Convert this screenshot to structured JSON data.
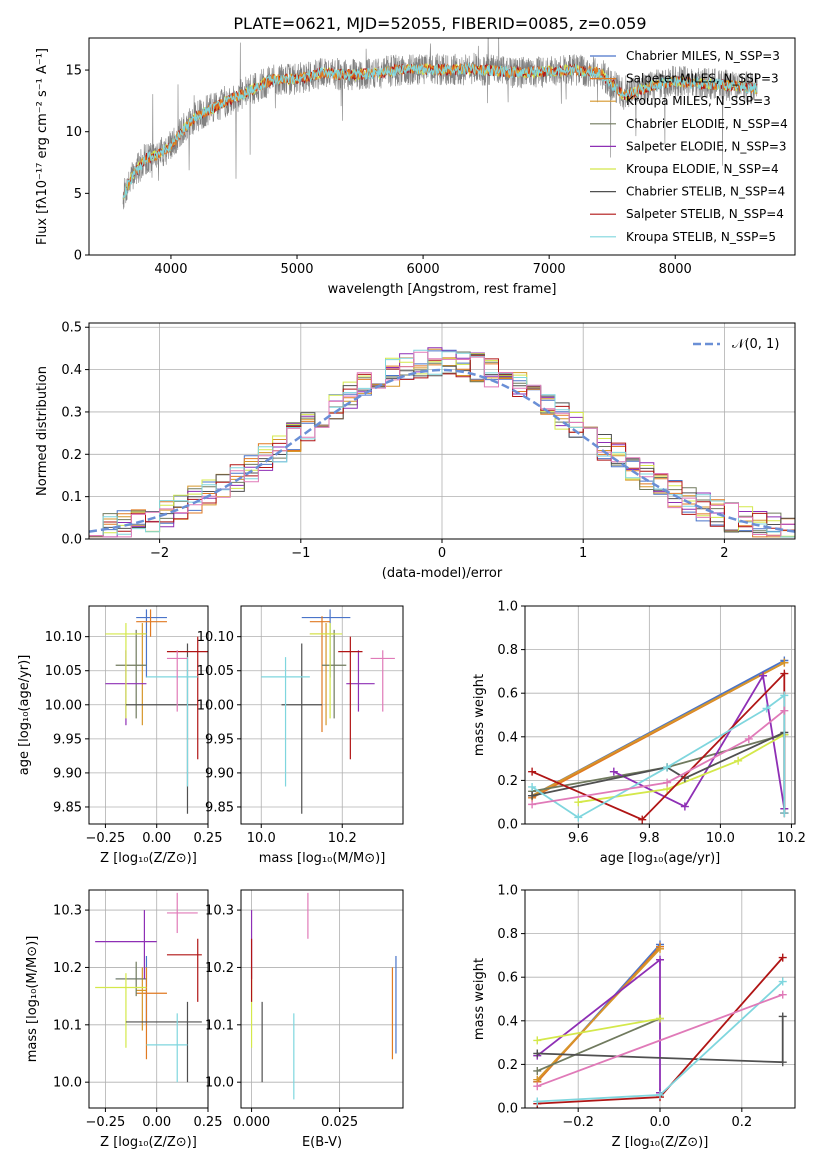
{
  "figure_title": "PLATE=0621, MJD=52055, FIBERID=0085, z=0.059",
  "colors": {
    "chabrier_miles": "#4a74c9",
    "salpeter_miles": "#e07a22",
    "kroupa_miles": "#d6962a",
    "chabrier_elodie": "#707a5e",
    "salpeter_elodie": "#8e2fb5",
    "kroupa_elodie": "#d4e84a",
    "chabrier_stelib": "#505050",
    "salpeter_stelib": "#b01515",
    "kroupa_stelib": "#7fd6de",
    "pink": "#e07ab8",
    "data_grey": "#808080",
    "normal_curve": "#6a8fd6"
  },
  "chart_data": [
    {
      "id": "spectrum",
      "type": "line",
      "title": "PLATE=0621, MJD=52055, FIBERID=0085, z=0.059",
      "xlabel": "wavelength [Angstrom, rest frame]",
      "ylabel": "Flux [fλ10⁻¹⁷ erg cm⁻² s⁻¹ A⁻¹]",
      "xlim": [
        3350,
        8950
      ],
      "ylim": [
        0,
        17.6
      ],
      "xticks": [
        "4000",
        "5000",
        "6000",
        "7000",
        "8000"
      ],
      "xtick_values": [
        4000,
        5000,
        6000,
        7000,
        8000
      ],
      "yticks": [
        "0",
        "5",
        "10",
        "15"
      ],
      "ytick_values": [
        0,
        5,
        10,
        15
      ],
      "legend_position": "top-right",
      "legend": [
        {
          "label": "Chabrier MILES, N_SSP=3",
          "color_key": "chabrier_miles"
        },
        {
          "label": "Salpeter MILES, N_SSP=3",
          "color_key": "salpeter_miles"
        },
        {
          "label": "Kroupa MILES, N_SSP=3",
          "color_key": "kroupa_miles"
        },
        {
          "label": "Chabrier ELODIE, N_SSP=4",
          "color_key": "chabrier_elodie"
        },
        {
          "label": "Salpeter ELODIE, N_SSP=3",
          "color_key": "salpeter_elodie"
        },
        {
          "label": "Kroupa ELODIE, N_SSP=4",
          "color_key": "kroupa_elodie"
        },
        {
          "label": "Chabrier STELIB, N_SSP=4",
          "color_key": "chabrier_stelib"
        },
        {
          "label": "Salpeter STELIB, N_SSP=4",
          "color_key": "salpeter_stelib"
        },
        {
          "label": "Kroupa STELIB, N_SSP=5",
          "color_key": "kroupa_stelib"
        }
      ],
      "continuum_x": [
        3620,
        3700,
        3800,
        3900,
        4000,
        4100,
        4200,
        4400,
        4600,
        4800,
        5000,
        5200,
        5400,
        5600,
        5800,
        6000,
        6200,
        6400,
        6600,
        6800,
        7000,
        7200,
        7400,
        7600,
        7800,
        8000,
        8200,
        8400,
        8650
      ],
      "continuum_y": [
        4.8,
        6.5,
        7.8,
        8.2,
        8.8,
        10.2,
        11.2,
        12.3,
        13.2,
        14.2,
        14.3,
        14.8,
        14.6,
        14.7,
        15.0,
        15.1,
        15.0,
        15.1,
        14.9,
        14.8,
        14.9,
        15.0,
        14.8,
        12.9,
        13.7,
        14.1,
        13.9,
        13.8,
        13.5
      ]
    },
    {
      "id": "residual_histogram",
      "type": "histogram",
      "xlabel": "(data-model)/error",
      "ylabel": "Normed distribution",
      "xlim": [
        -2.5,
        2.5
      ],
      "ylim": [
        0,
        0.51
      ],
      "xticks": [
        "−2",
        "−1",
        "0",
        "1",
        "2"
      ],
      "xtick_values": [
        -2,
        -1,
        0,
        1,
        2
      ],
      "yticks": [
        "0.0",
        "0.1",
        "0.2",
        "0.3",
        "0.4",
        "0.5"
      ],
      "ytick_values": [
        0,
        0.1,
        0.2,
        0.3,
        0.4,
        0.5
      ],
      "bin_width": 0.1,
      "legend_position": "top-right",
      "curve_label": "𝒩(0, 1)",
      "curve": {
        "mean": 0,
        "sigma": 1
      }
    },
    {
      "id": "age_vs_Z",
      "type": "scatter",
      "xlabel": "Z [log₁₀(Z/Z⊙)]",
      "ylabel": "age  [log₁₀(age/yr)]",
      "xlim": [
        -0.33,
        0.25
      ],
      "ylim": [
        9.825,
        10.145
      ],
      "xticks": [
        "−0.25",
        "0.00",
        "0.25"
      ],
      "xtick_values": [
        -0.25,
        0,
        0.25
      ],
      "yticks": [
        "9.85",
        "9.90",
        "9.95",
        "10.00",
        "10.05",
        "10.10"
      ],
      "ytick_values": [
        9.85,
        9.9,
        9.95,
        10.0,
        10.05,
        10.1
      ],
      "points": [
        {
          "x": -0.05,
          "y": 10.128,
          "xlo": -0.1,
          "xhi": 0.05,
          "ylo": 10.04,
          "yhi": 10.14,
          "color_key": "chabrier_miles"
        },
        {
          "x": -0.03,
          "y": 10.122,
          "xlo": -0.1,
          "xhi": 0.05,
          "ylo": 10.1,
          "yhi": 10.14,
          "color_key": "salpeter_miles"
        },
        {
          "x": -0.07,
          "y": 10.104,
          "xlo": -0.1,
          "xhi": -0.05,
          "ylo": 9.97,
          "yhi": 10.12,
          "color_key": "kroupa_miles"
        },
        {
          "x": -0.1,
          "y": 10.058,
          "xlo": -0.2,
          "xhi": -0.05,
          "ylo": 9.98,
          "yhi": 10.11,
          "color_key": "chabrier_elodie"
        },
        {
          "x": -0.15,
          "y": 10.031,
          "xlo": -0.25,
          "xhi": -0.05,
          "ylo": 9.97,
          "yhi": 10.08,
          "color_key": "salpeter_elodie"
        },
        {
          "x": -0.15,
          "y": 10.104,
          "xlo": -0.25,
          "xhi": -0.05,
          "ylo": 9.98,
          "yhi": 10.12,
          "color_key": "kroupa_elodie"
        },
        {
          "x": 0.15,
          "y": 10.0,
          "xlo": -0.15,
          "xhi": 0.2,
          "ylo": 9.84,
          "yhi": 10.09,
          "color_key": "chabrier_stelib"
        },
        {
          "x": 0.2,
          "y": 10.078,
          "xlo": 0.05,
          "xhi": 0.25,
          "ylo": 9.92,
          "yhi": 10.1,
          "color_key": "salpeter_stelib"
        },
        {
          "x": 0.15,
          "y": 10.041,
          "xlo": -0.05,
          "xhi": 0.2,
          "ylo": 9.88,
          "yhi": 10.07,
          "color_key": "kroupa_stelib"
        },
        {
          "x": 0.1,
          "y": 10.068,
          "xlo": 0.05,
          "xhi": 0.15,
          "ylo": 9.99,
          "yhi": 10.08,
          "color_key": "pink"
        }
      ]
    },
    {
      "id": "age_vs_mass",
      "type": "scatter",
      "xlabel": "mass [log₁₀(M/M⊙)]",
      "ylabel": "",
      "xlim": [
        9.95,
        10.35
      ],
      "ylim": [
        9.825,
        10.145
      ],
      "xticks": [
        "10.0",
        "10.2"
      ],
      "xtick_values": [
        10.0,
        10.2
      ],
      "yticks": [
        "9.85",
        "9.90",
        "9.95",
        "10.00",
        "10.05",
        "10.10"
      ],
      "ytick_values": [
        9.85,
        9.9,
        9.95,
        10.0,
        10.05,
        10.1
      ],
      "points": [
        {
          "x": 10.17,
          "y": 10.128,
          "xlo": 10.1,
          "xhi": 10.22,
          "ylo": 10.04,
          "yhi": 10.14,
          "color_key": "chabrier_miles"
        },
        {
          "x": 10.15,
          "y": 10.122,
          "xlo": 10.12,
          "xhi": 10.17,
          "ylo": 9.96,
          "yhi": 10.13,
          "color_key": "salpeter_miles"
        },
        {
          "x": 10.16,
          "y": 10.104,
          "xlo": 10.12,
          "xhi": 10.18,
          "ylo": 9.97,
          "yhi": 10.12,
          "color_key": "kroupa_miles"
        },
        {
          "x": 10.18,
          "y": 10.058,
          "xlo": 10.15,
          "xhi": 10.21,
          "ylo": 9.98,
          "yhi": 10.11,
          "color_key": "chabrier_elodie"
        },
        {
          "x": 10.24,
          "y": 10.031,
          "xlo": 10.21,
          "xhi": 10.28,
          "ylo": 9.99,
          "yhi": 10.08,
          "color_key": "salpeter_elodie"
        },
        {
          "x": 10.17,
          "y": 10.104,
          "xlo": 10.12,
          "xhi": 10.2,
          "ylo": 9.98,
          "yhi": 10.12,
          "color_key": "kroupa_elodie"
        },
        {
          "x": 10.1,
          "y": 10.0,
          "xlo": 10.05,
          "xhi": 10.15,
          "ylo": 9.84,
          "yhi": 10.09,
          "color_key": "chabrier_stelib"
        },
        {
          "x": 10.22,
          "y": 10.078,
          "xlo": 10.19,
          "xhi": 10.25,
          "ylo": 9.92,
          "yhi": 10.1,
          "color_key": "salpeter_stelib"
        },
        {
          "x": 10.06,
          "y": 10.041,
          "xlo": 10.0,
          "xhi": 10.12,
          "ylo": 9.88,
          "yhi": 10.07,
          "color_key": "kroupa_stelib"
        },
        {
          "x": 10.3,
          "y": 10.068,
          "xlo": 10.27,
          "xhi": 10.33,
          "ylo": 9.99,
          "yhi": 10.08,
          "color_key": "pink"
        }
      ]
    },
    {
      "id": "weight_vs_age",
      "type": "line",
      "xlabel": "age  [log₁₀(age/yr)]",
      "ylabel": "mass weight",
      "xlim": [
        9.45,
        10.21
      ],
      "ylim": [
        0,
        1.0
      ],
      "xticks": [
        "9.6",
        "9.8",
        "10.0",
        "10.2"
      ],
      "xtick_values": [
        9.6,
        9.8,
        10.0,
        10.2
      ],
      "yticks": [
        "0.0",
        "0.2",
        "0.4",
        "0.6",
        "0.8",
        "1.0"
      ],
      "ytick_values": [
        0,
        0.2,
        0.4,
        0.6,
        0.8,
        1.0
      ],
      "series": [
        {
          "color_key": "chabrier_miles",
          "x": [
            9.47,
            10.18
          ],
          "y": [
            0.13,
            0.75
          ]
        },
        {
          "color_key": "salpeter_miles",
          "x": [
            9.47,
            10.18
          ],
          "y": [
            0.12,
            0.74
          ]
        },
        {
          "color_key": "kroupa_miles",
          "x": [
            9.47,
            10.18
          ],
          "y": [
            0.13,
            0.74
          ]
        },
        {
          "color_key": "chabrier_elodie",
          "x": [
            9.47,
            9.85,
            10.18
          ],
          "y": [
            0.15,
            0.26,
            0.41
          ]
        },
        {
          "color_key": "salpeter_elodie",
          "x": [
            9.7,
            9.9,
            10.12,
            10.18
          ],
          "y": [
            0.24,
            0.08,
            0.68,
            0.07
          ]
        },
        {
          "color_key": "kroupa_elodie",
          "x": [
            9.6,
            9.85,
            10.05,
            10.18
          ],
          "y": [
            0.1,
            0.16,
            0.29,
            0.41
          ]
        },
        {
          "color_key": "chabrier_stelib",
          "x": [
            9.47,
            9.85,
            9.9,
            10.18,
            10.18
          ],
          "y": [
            0.13,
            0.26,
            0.21,
            0.42,
            0.05
          ]
        },
        {
          "color_key": "salpeter_stelib",
          "x": [
            9.47,
            9.78,
            10.18,
            10.18
          ],
          "y": [
            0.24,
            0.02,
            0.69,
            0.05
          ]
        },
        {
          "color_key": "kroupa_stelib",
          "x": [
            9.47,
            9.6,
            9.85,
            10.13,
            10.18,
            10.18
          ],
          "y": [
            0.17,
            0.03,
            0.26,
            0.53,
            0.59,
            0.05
          ]
        },
        {
          "color_key": "pink",
          "x": [
            9.47,
            9.85,
            10.08,
            10.18
          ],
          "y": [
            0.09,
            0.19,
            0.39,
            0.52
          ]
        }
      ]
    },
    {
      "id": "mass_vs_Z",
      "type": "scatter",
      "xlabel": "Z [log₁₀(Z/Z⊙)]",
      "ylabel": "mass [log₁₀(M/M⊙)]",
      "xlim": [
        -0.33,
        0.25
      ],
      "ylim": [
        9.955,
        10.335
      ],
      "xticks": [
        "−0.25",
        "0.00",
        "0.25"
      ],
      "xtick_values": [
        -0.25,
        0,
        0.25
      ],
      "yticks": [
        "10.0",
        "10.1",
        "10.2",
        "10.3"
      ],
      "ytick_values": [
        10.0,
        10.1,
        10.2,
        10.3
      ],
      "points": [
        {
          "x": -0.05,
          "y": 10.18,
          "xlo": -0.2,
          "xhi": -0.05,
          "ylo": 10.1,
          "yhi": 10.22,
          "color_key": "chabrier_miles"
        },
        {
          "x": -0.05,
          "y": 10.155,
          "xlo": -0.1,
          "xhi": 0.05,
          "ylo": 10.04,
          "yhi": 10.2,
          "color_key": "salpeter_miles"
        },
        {
          "x": -0.07,
          "y": 10.16,
          "xlo": -0.1,
          "xhi": -0.05,
          "ylo": 10.09,
          "yhi": 10.2,
          "color_key": "kroupa_miles"
        },
        {
          "x": -0.1,
          "y": 10.18,
          "xlo": -0.2,
          "xhi": -0.05,
          "ylo": 10.15,
          "yhi": 10.21,
          "color_key": "chabrier_elodie"
        },
        {
          "x": -0.06,
          "y": 10.245,
          "xlo": -0.3,
          "xhi": 0.0,
          "ylo": 10.18,
          "yhi": 10.3,
          "color_key": "salpeter_elodie"
        },
        {
          "x": -0.15,
          "y": 10.165,
          "xlo": -0.3,
          "xhi": -0.05,
          "ylo": 10.06,
          "yhi": 10.19,
          "color_key": "kroupa_elodie"
        },
        {
          "x": 0.15,
          "y": 10.105,
          "xlo": -0.15,
          "xhi": 0.22,
          "ylo": 10.0,
          "yhi": 10.14,
          "color_key": "chabrier_stelib"
        },
        {
          "x": 0.2,
          "y": 10.222,
          "xlo": 0.05,
          "xhi": 0.22,
          "ylo": 10.14,
          "yhi": 10.25,
          "color_key": "salpeter_stelib"
        },
        {
          "x": 0.1,
          "y": 10.065,
          "xlo": -0.05,
          "xhi": 0.15,
          "ylo": 10.0,
          "yhi": 10.12,
          "color_key": "kroupa_stelib"
        },
        {
          "x": 0.1,
          "y": 10.295,
          "xlo": 0.05,
          "xhi": 0.2,
          "ylo": 10.26,
          "yhi": 10.33,
          "color_key": "pink"
        }
      ]
    },
    {
      "id": "mass_vs_EBV",
      "type": "scatter",
      "xlabel": "E(B-V)",
      "ylabel": "",
      "xlim": [
        -0.003,
        0.043
      ],
      "ylim": [
        9.955,
        10.335
      ],
      "xticks": [
        "0.000",
        "0.025"
      ],
      "xtick_values": [
        0,
        0.025
      ],
      "yticks": [
        "10.0",
        "10.1",
        "10.2",
        "10.3"
      ],
      "ytick_values": [
        10.0,
        10.1,
        10.2,
        10.3
      ],
      "points": [
        {
          "x": 0.041,
          "y": 10.18,
          "ylo": 10.05,
          "yhi": 10.22,
          "color_key": "chabrier_miles"
        },
        {
          "x": 0.04,
          "y": 10.155,
          "ylo": 10.04,
          "yhi": 10.2,
          "color_key": "salpeter_miles"
        },
        {
          "x": 0.0,
          "y": 10.14,
          "ylo": 10.06,
          "yhi": 10.2,
          "color_key": "kroupa_elodie"
        },
        {
          "x": 0.0,
          "y": 10.245,
          "ylo": 10.18,
          "yhi": 10.3,
          "color_key": "salpeter_elodie"
        },
        {
          "x": 0.0,
          "y": 10.2,
          "ylo": 10.14,
          "yhi": 10.25,
          "color_key": "salpeter_stelib"
        },
        {
          "x": 0.003,
          "y": 10.1,
          "ylo": 10.0,
          "yhi": 10.14,
          "color_key": "chabrier_stelib"
        },
        {
          "x": 0.012,
          "y": 10.05,
          "ylo": 9.97,
          "yhi": 10.12,
          "color_key": "kroupa_stelib"
        },
        {
          "x": 0.016,
          "y": 10.29,
          "ylo": 10.25,
          "yhi": 10.33,
          "color_key": "pink"
        }
      ]
    },
    {
      "id": "weight_vs_Z",
      "type": "line",
      "xlabel": "Z [log₁₀(Z/Z⊙)]",
      "ylabel": "mass weight",
      "xlim": [
        -0.33,
        0.33
      ],
      "ylim": [
        0,
        1.0
      ],
      "xticks": [
        "−0.2",
        "0.0",
        "0.2"
      ],
      "xtick_values": [
        -0.2,
        0,
        0.2
      ],
      "yticks": [
        "0.0",
        "0.2",
        "0.4",
        "0.6",
        "0.8",
        "1.0"
      ],
      "ytick_values": [
        0,
        0.2,
        0.4,
        0.6,
        0.8,
        1.0
      ],
      "series": [
        {
          "color_key": "chabrier_miles",
          "x": [
            -0.3,
            0.0
          ],
          "y": [
            0.12,
            0.75
          ]
        },
        {
          "color_key": "salpeter_miles",
          "x": [
            -0.3,
            0.0
          ],
          "y": [
            0.12,
            0.74
          ]
        },
        {
          "color_key": "kroupa_miles",
          "x": [
            -0.3,
            0.0
          ],
          "y": [
            0.13,
            0.73
          ]
        },
        {
          "color_key": "chabrier_elodie",
          "x": [
            -0.3,
            0.0
          ],
          "y": [
            0.17,
            0.41
          ]
        },
        {
          "color_key": "salpeter_elodie",
          "x": [
            -0.3,
            0.0,
            0.0
          ],
          "y": [
            0.24,
            0.68,
            0.07
          ]
        },
        {
          "color_key": "kroupa_elodie",
          "x": [
            -0.3,
            0.0
          ],
          "y": [
            0.31,
            0.41
          ]
        },
        {
          "color_key": "chabrier_stelib",
          "x": [
            -0.3,
            0.3,
            0.3
          ],
          "y": [
            0.25,
            0.21,
            0.42
          ]
        },
        {
          "color_key": "salpeter_stelib",
          "x": [
            -0.3,
            0.0,
            0.3
          ],
          "y": [
            0.02,
            0.05,
            0.69
          ]
        },
        {
          "color_key": "kroupa_stelib",
          "x": [
            -0.3,
            0.0,
            0.3
          ],
          "y": [
            0.03,
            0.06,
            0.58
          ]
        },
        {
          "color_key": "pink",
          "x": [
            -0.3,
            0.3
          ],
          "y": [
            0.1,
            0.52
          ]
        }
      ]
    }
  ]
}
